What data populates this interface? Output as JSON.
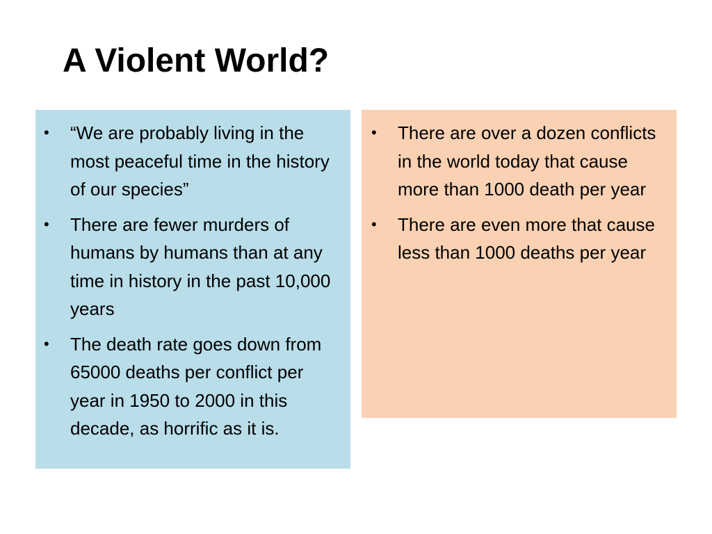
{
  "slide": {
    "title": "A Violent World?"
  },
  "colors": {
    "left_panel_bg": "#b9dde9",
    "right_panel_bg": "#fad1b3"
  },
  "left_panel": {
    "bullets": [
      "“We are probably living in the most peaceful time in the history of our species”",
      "There are fewer murders of humans by humans than at any time in history in the past 10,000 years",
      "The death rate goes down from 65000 deaths per conflict per year in 1950 to 2000 in this decade, as horrific as it is."
    ]
  },
  "right_panel": {
    "bullets": [
      "There are over a dozen conflicts in the world today that cause more than 1000 death per year",
      "There are even more that cause less than 1000 deaths per year"
    ]
  },
  "bullet_glyph": "•"
}
